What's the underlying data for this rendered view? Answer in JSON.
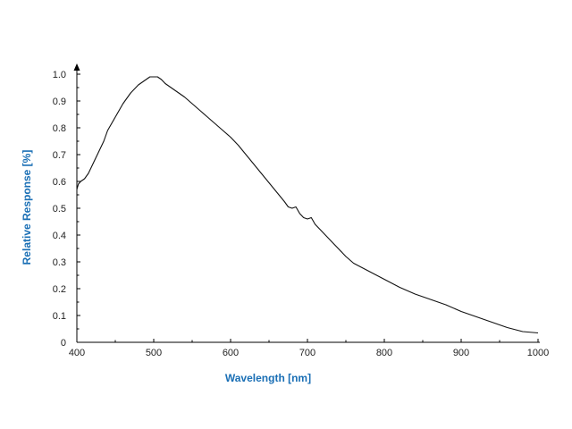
{
  "chart_data": {
    "type": "line",
    "title": "",
    "xlabel": "Wavelength [nm]",
    "ylabel": "Relative Response [%]",
    "xlim": [
      400,
      1000
    ],
    "ylim": [
      0,
      1.0
    ],
    "x_ticks": [
      400,
      500,
      600,
      700,
      800,
      900,
      1000
    ],
    "x_tick_labels": [
      "400",
      "500",
      "600",
      "700",
      "800",
      "900",
      "1000"
    ],
    "y_ticks": [
      0,
      0.1,
      0.2,
      0.3,
      0.4,
      0.5,
      0.6,
      0.7,
      0.8,
      0.9,
      1.0
    ],
    "y_tick_labels": [
      "0",
      "0.1",
      "0.2",
      "0.3",
      "0.4",
      "0.5",
      "0.6",
      "0.7",
      "0.8",
      "0.9",
      "1.0"
    ],
    "grid": false,
    "axis_label_color": "#1a6fb5",
    "line_color": "#111111",
    "series": [
      {
        "x": [
          400,
          402,
          405,
          410,
          415,
          420,
          425,
          430,
          435,
          440,
          450,
          460,
          470,
          480,
          490,
          495,
          500,
          505,
          510,
          515,
          520,
          530,
          540,
          550,
          560,
          570,
          580,
          590,
          600,
          610,
          620,
          630,
          640,
          650,
          660,
          670,
          675,
          680,
          685,
          690,
          695,
          700,
          705,
          710,
          720,
          730,
          740,
          750,
          760,
          770,
          780,
          790,
          800,
          820,
          840,
          860,
          880,
          900,
          920,
          940,
          960,
          980,
          1000
        ],
        "y": [
          0.57,
          0.59,
          0.6,
          0.61,
          0.63,
          0.66,
          0.69,
          0.72,
          0.75,
          0.79,
          0.84,
          0.89,
          0.93,
          0.96,
          0.98,
          0.99,
          0.99,
          0.99,
          0.98,
          0.965,
          0.955,
          0.935,
          0.915,
          0.89,
          0.865,
          0.84,
          0.815,
          0.79,
          0.765,
          0.735,
          0.7,
          0.665,
          0.63,
          0.595,
          0.56,
          0.525,
          0.505,
          0.5,
          0.505,
          0.48,
          0.465,
          0.46,
          0.465,
          0.44,
          0.41,
          0.38,
          0.35,
          0.32,
          0.295,
          0.28,
          0.265,
          0.25,
          0.235,
          0.205,
          0.18,
          0.16,
          0.14,
          0.115,
          0.095,
          0.075,
          0.055,
          0.04,
          0.035
        ]
      }
    ]
  }
}
